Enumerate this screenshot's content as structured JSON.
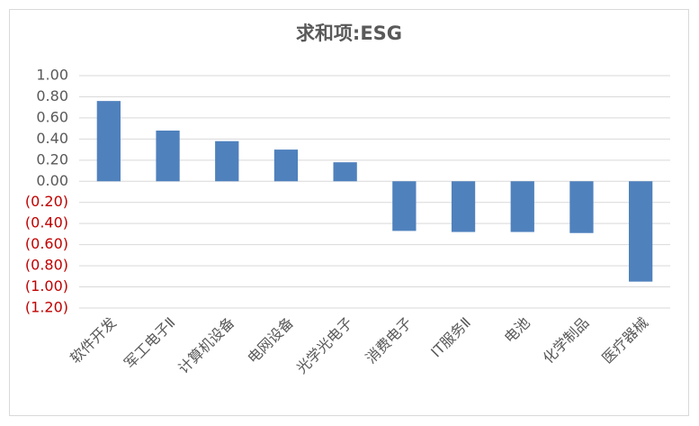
{
  "chart_data": {
    "type": "bar",
    "title": "求和项:ESG",
    "categories": [
      "软件开发",
      "军工电子Ⅱ",
      "计算机设备",
      "电网设备",
      "光学光电子",
      "消费电子",
      "IT服务Ⅱ",
      "电池",
      "化学制品",
      "医疗器械"
    ],
    "values": [
      0.76,
      0.48,
      0.38,
      0.3,
      0.18,
      -0.47,
      -0.48,
      -0.48,
      -0.49,
      -0.95
    ],
    "color": "#4f81bd",
    "ylim": [
      -1.2,
      1.0
    ],
    "yticks": [
      {
        "value": 1.0,
        "label": "1.00"
      },
      {
        "value": 0.8,
        "label": "0.80"
      },
      {
        "value": 0.6,
        "label": "0.60"
      },
      {
        "value": 0.4,
        "label": "0.40"
      },
      {
        "value": 0.2,
        "label": "0.20"
      },
      {
        "value": 0,
        "label": "0.00"
      },
      {
        "value": -0.2,
        "label": "(0.20)"
      },
      {
        "value": -0.4,
        "label": "(0.40)"
      },
      {
        "value": -0.6,
        "label": "(0.60)"
      },
      {
        "value": -0.8,
        "label": "(0.80)"
      },
      {
        "value": -1.0,
        "label": "(1.00)"
      },
      {
        "value": -1.2,
        "label": "(1.20)"
      }
    ],
    "grid": true,
    "negative_tick_color": "#c00000"
  }
}
